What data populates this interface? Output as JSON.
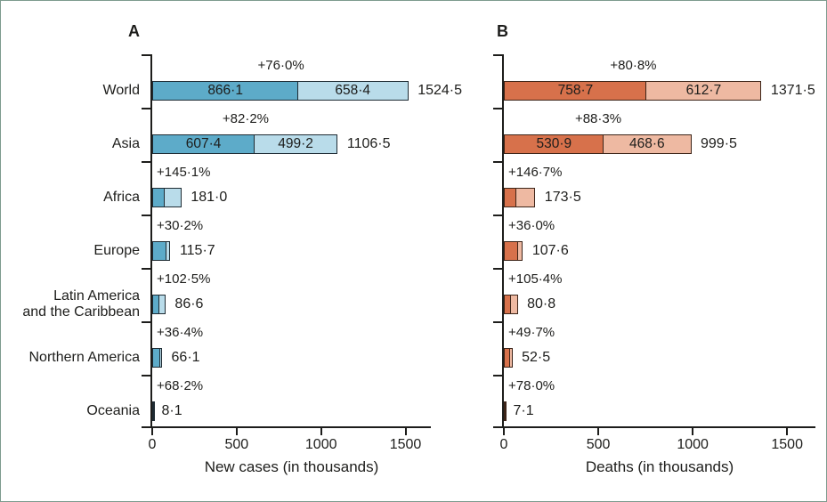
{
  "figure": {
    "background": "#ffffff",
    "border_color": "#7d9b8e",
    "text_color": "#1d1d1b"
  },
  "chart_data": [
    {
      "type": "bar",
      "orientation": "horizontal",
      "stacked": true,
      "panel_label": "A",
      "xlabel": "New cases (in thousands)",
      "xlim": [
        0,
        1650
      ],
      "xtick_values": [
        0,
        500,
        1000,
        1500
      ],
      "xtick_labels": [
        "0",
        "500",
        "1000",
        "1500"
      ],
      "grid": false,
      "legend": "none",
      "categories": [
        "World",
        "Asia",
        "Africa",
        "Europe",
        "Latin America\nand the Caribbean",
        "Northern America",
        "Oceania"
      ],
      "series": [
        {
          "name": "segment-1",
          "values": [
            866.1,
            607.4,
            73.9,
            88.9,
            42.8,
            48.5,
            4.8
          ]
        },
        {
          "name": "segment-2",
          "values": [
            658.4,
            499.2,
            107.1,
            26.8,
            43.8,
            17.6,
            3.3
          ]
        }
      ],
      "totals": [
        1524.5,
        1106.5,
        181.0,
        115.7,
        86.6,
        66.1,
        8.1
      ],
      "total_labels": [
        "1524·5",
        "1106·5",
        "181·0",
        "115·7",
        "86·6",
        "66·1",
        "8·1"
      ],
      "percent_labels": [
        "+76·0%",
        "+82·2%",
        "+145·1%",
        "+30·2%",
        "+102·5%",
        "+36·4%",
        "+68·2%"
      ],
      "segment_value_labels": [
        [
          "866·1",
          "658·4"
        ],
        [
          "607·4",
          "499·2"
        ],
        null,
        null,
        null,
        null,
        null
      ],
      "colors": {
        "segment1": "#5dabc9",
        "segment2": "#b9dcea",
        "border": "#1e2b33"
      }
    },
    {
      "type": "bar",
      "orientation": "horizontal",
      "stacked": true,
      "panel_label": "B",
      "xlabel": "Deaths (in thousands)",
      "xlim": [
        0,
        1650
      ],
      "xtick_values": [
        0,
        500,
        1000,
        1500
      ],
      "xtick_labels": [
        "0",
        "500",
        "1000",
        "1500"
      ],
      "grid": false,
      "legend": "none",
      "categories": [
        "World",
        "Asia",
        "Africa",
        "Europe",
        "Latin America\nand the Caribbean",
        "Northern America",
        "Oceania"
      ],
      "series": [
        {
          "name": "segment-1",
          "values": [
            758.7,
            530.9,
            70.3,
            79.1,
            39.3,
            35.1,
            4.0
          ]
        },
        {
          "name": "segment-2",
          "values": [
            612.7,
            468.6,
            103.2,
            28.5,
            41.5,
            17.4,
            3.1
          ]
        }
      ],
      "totals": [
        1371.5,
        999.5,
        173.5,
        107.6,
        80.8,
        52.5,
        7.1
      ],
      "total_labels": [
        "1371·5",
        "999·5",
        "173·5",
        "107·6",
        "80·8",
        "52·5",
        "7·1"
      ],
      "percent_labels": [
        "+80·8%",
        "+88·3%",
        "+146·7%",
        "+36·0%",
        "+105·4%",
        "+49·7%",
        "+78·0%"
      ],
      "segment_value_labels": [
        [
          "758·7",
          "612·7"
        ],
        [
          "530·9",
          "468·6"
        ],
        null,
        null,
        null,
        null,
        null
      ],
      "colors": {
        "segment1": "#d7714b",
        "segment2": "#eeb9a2",
        "border": "#3c2418"
      }
    }
  ]
}
